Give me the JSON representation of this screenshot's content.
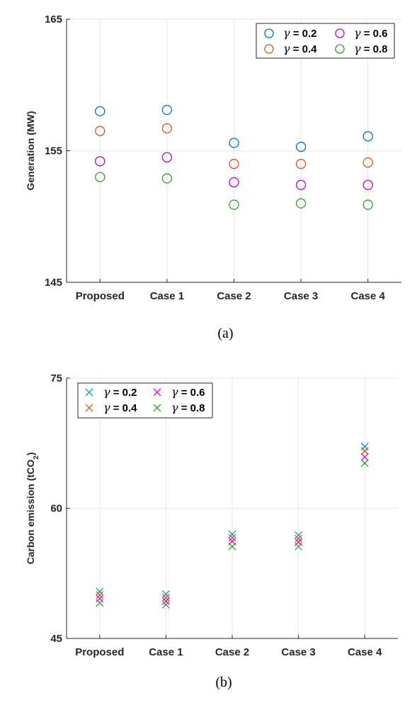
{
  "chart_data": [
    {
      "type": "scatter",
      "marker": "circle",
      "caption": "(a)",
      "ylabel": "Generation (MW)",
      "categories": [
        "Proposed",
        "Case 1",
        "Case 2",
        "Case 3",
        "Case 4"
      ],
      "ylim": [
        145,
        165
      ],
      "yticks": [
        "145",
        "155",
        "165"
      ],
      "grid": true,
      "legend_position": "top-right",
      "series": [
        {
          "name": "γ = 0.2",
          "color": "#0072BD",
          "values": [
            158.0,
            158.1,
            155.6,
            155.3,
            156.1
          ]
        },
        {
          "name": "γ = 0.4",
          "color": "#D95319",
          "values": [
            156.5,
            156.7,
            154.0,
            154.0,
            154.1
          ]
        },
        {
          "name": "γ = 0.6",
          "color": "#C000C0",
          "values": [
            154.2,
            154.5,
            152.6,
            152.4,
            152.4
          ]
        },
        {
          "name": "γ = 0.8",
          "color": "#2CA02C",
          "values": [
            153.0,
            152.9,
            150.9,
            151.0,
            150.9
          ]
        }
      ]
    },
    {
      "type": "scatter",
      "marker": "x",
      "caption": "(b)",
      "ylabel": "Carbon emission (tCO",
      "ylabel_sub": "2",
      "ylabel_end": ")",
      "categories": [
        "Proposed",
        "Case 1",
        "Case 2",
        "Case 3",
        "Case 4"
      ],
      "ylim": [
        45,
        75
      ],
      "yticks": [
        "45",
        "60",
        "75"
      ],
      "grid": true,
      "legend_position": "top-left",
      "series": [
        {
          "name": "γ = 0.2",
          "color": "#00A0B0",
          "values": [
            50.4,
            50.1,
            57.0,
            56.9,
            67.1
          ]
        },
        {
          "name": "γ = 0.4",
          "color": "#D95319",
          "values": [
            50.0,
            49.7,
            56.6,
            56.5,
            66.6
          ]
        },
        {
          "name": "γ = 0.6",
          "color": "#E000E0",
          "values": [
            49.6,
            49.3,
            56.2,
            56.1,
            65.9
          ]
        },
        {
          "name": "γ = 0.8",
          "color": "#2CA02C",
          "values": [
            49.1,
            48.9,
            55.6,
            55.6,
            65.2
          ]
        }
      ]
    }
  ]
}
